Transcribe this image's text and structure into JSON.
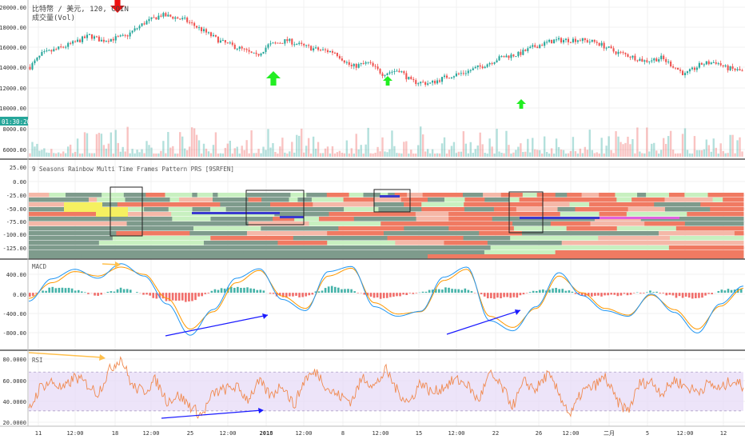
{
  "colors": {
    "up": "#26a69a",
    "down": "#ef5350",
    "macd_line": "#2196f3",
    "signal_line": "#ff9800",
    "rsi_line": "#f08a50",
    "rsi_band": "#e6d8f7",
    "annot_blue": "#1a1aff",
    "annot_orange": "#ffc04d",
    "annot_green": "#22ee22",
    "annot_red": "#ee1111",
    "price_tag_bg": "#26a69a",
    "rb_dark": "#7e9b8c",
    "rb_light": "#c8f0c0",
    "rb_red": "#f07a62",
    "rb_pink": "#f5b8a8",
    "rb_yellow": "#f5f060",
    "rb_blue": "#3a3acf",
    "rb_magenta": "#e060e0"
  },
  "icons": [
    "up-arrow-icon",
    "down-arrow-icon"
  ],
  "price_panel": {
    "symbol": "比特幣 / 美元, 120, COIN",
    "volume_label": "成交量(Vol)",
    "price_tag": "01:30:20",
    "y_ticks": [
      "20000.00",
      "18000.00",
      "16000.00",
      "14000.00",
      "12000.00",
      "10000.00",
      "8000.00",
      "6000.00"
    ]
  },
  "rainbow_panel": {
    "title": "9 Seasons Rainbow Multi Time Frames Pattern PRS [9SRFEN]",
    "y_ticks": [
      "25.00",
      "0.00",
      "-25.00",
      "-50.00",
      "-75.00",
      "-100.00",
      "-125.00"
    ]
  },
  "macd_panel": {
    "title": "MACD",
    "y_ticks": [
      "400.00",
      "0.00",
      "-400.00",
      "-800.00"
    ]
  },
  "rsi_panel": {
    "title": "RSI",
    "y_ticks": [
      "80.0000",
      "60.0000",
      "40.0000",
      "20.0000"
    ]
  },
  "x_axis": {
    "labels": [
      "11",
      "12:00",
      "18",
      "12:00",
      "25",
      "12:00",
      "2018",
      "12:00",
      "8",
      "12:00",
      "15",
      "12:00",
      "22",
      "26",
      "12:00",
      "二月",
      "5",
      "12:00",
      "12"
    ]
  },
  "chart_data": [
    {
      "type": "candlestick",
      "title": "比特幣 / 美元, 120, COIN",
      "ylim": [
        5000,
        20800
      ],
      "x_range": [
        0,
        300
      ],
      "close_anchors": [
        [
          0,
          14200
        ],
        [
          5,
          15500
        ],
        [
          10,
          15900
        ],
        [
          18,
          16600
        ],
        [
          25,
          17400
        ],
        [
          30,
          16900
        ],
        [
          40,
          17300
        ],
        [
          48,
          18700
        ],
        [
          55,
          19500
        ],
        [
          60,
          19300
        ],
        [
          65,
          19000
        ],
        [
          72,
          18000
        ],
        [
          80,
          16800
        ],
        [
          88,
          16100
        ],
        [
          95,
          15300
        ],
        [
          100,
          16400
        ],
        [
          108,
          16900
        ],
        [
          115,
          16300
        ],
        [
          120,
          16000
        ],
        [
          128,
          15700
        ],
        [
          135,
          14200
        ],
        [
          142,
          14600
        ],
        [
          148,
          13500
        ],
        [
          155,
          13900
        ],
        [
          160,
          12700
        ],
        [
          168,
          12500
        ],
        [
          175,
          13200
        ],
        [
          182,
          13600
        ],
        [
          190,
          14300
        ],
        [
          198,
          15200
        ],
        [
          205,
          15500
        ],
        [
          212,
          16300
        ],
        [
          220,
          16900
        ],
        [
          230,
          17000
        ],
        [
          238,
          16700
        ],
        [
          245,
          15800
        ],
        [
          252,
          15300
        ],
        [
          258,
          14800
        ],
        [
          265,
          15100
        ],
        [
          270,
          14300
        ],
        [
          275,
          13400
        ],
        [
          282,
          14500
        ],
        [
          288,
          14700
        ],
        [
          292,
          14100
        ],
        [
          300,
          13700
        ]
      ],
      "volume_scale": "relative 0-1",
      "annotations": [
        "down-arrow-icon at peak",
        "up-arrow-icon x3 at lows"
      ]
    },
    {
      "type": "heatmap",
      "title": "9 Seasons Rainbow Multi Time Frames Pattern PRS [9SRFEN]",
      "ylim": [
        -135,
        30
      ],
      "rows": [
        -25,
        -35,
        -45,
        -55,
        -65,
        -75,
        -85,
        -95,
        -105,
        -115,
        -125
      ]
    },
    {
      "type": "line",
      "title": "MACD",
      "ylim": [
        -1000,
        560
      ],
      "series": [
        {
          "name": "MACD",
          "values": [
            -150,
            250,
            420,
            260,
            520,
            300,
            -200,
            -760,
            -300,
            260,
            430,
            -120,
            -320,
            380,
            470,
            -250,
            -420,
            -330,
            280,
            460,
            -500,
            -680,
            -250,
            360,
            -50,
            -320,
            -420,
            -20,
            -350,
            -720,
            -200,
            120
          ]
        },
        {
          "name": "Signal",
          "values": [
            -100,
            180,
            380,
            300,
            460,
            330,
            -100,
            -650,
            -340,
            180,
            400,
            -60,
            -280,
            300,
            440,
            -180,
            -380,
            -340,
            220,
            420,
            -420,
            -620,
            -280,
            300,
            0,
            -280,
            -400,
            -40,
            -300,
            -650,
            -240,
            80
          ]
        }
      ]
    },
    {
      "type": "line",
      "title": "RSI",
      "ylim": [
        15,
        90
      ],
      "band": [
        30,
        70
      ],
      "series": [
        {
          "name": "RSI",
          "values": [
            30,
            55,
            60,
            52,
            65,
            58,
            48,
            72,
            85,
            55,
            50,
            62,
            40,
            46,
            35,
            25,
            48,
            52,
            55,
            42,
            60,
            45,
            58,
            35,
            64,
            70,
            52,
            45,
            40,
            65,
            55,
            72,
            50,
            38,
            60,
            48,
            55,
            62,
            58,
            40,
            68,
            55,
            35,
            60,
            52,
            68,
            48,
            25,
            50,
            55,
            65,
            40,
            30,
            58,
            60,
            48,
            62,
            55,
            50,
            58,
            52,
            62,
            55
          ]
        }
      ]
    }
  ]
}
